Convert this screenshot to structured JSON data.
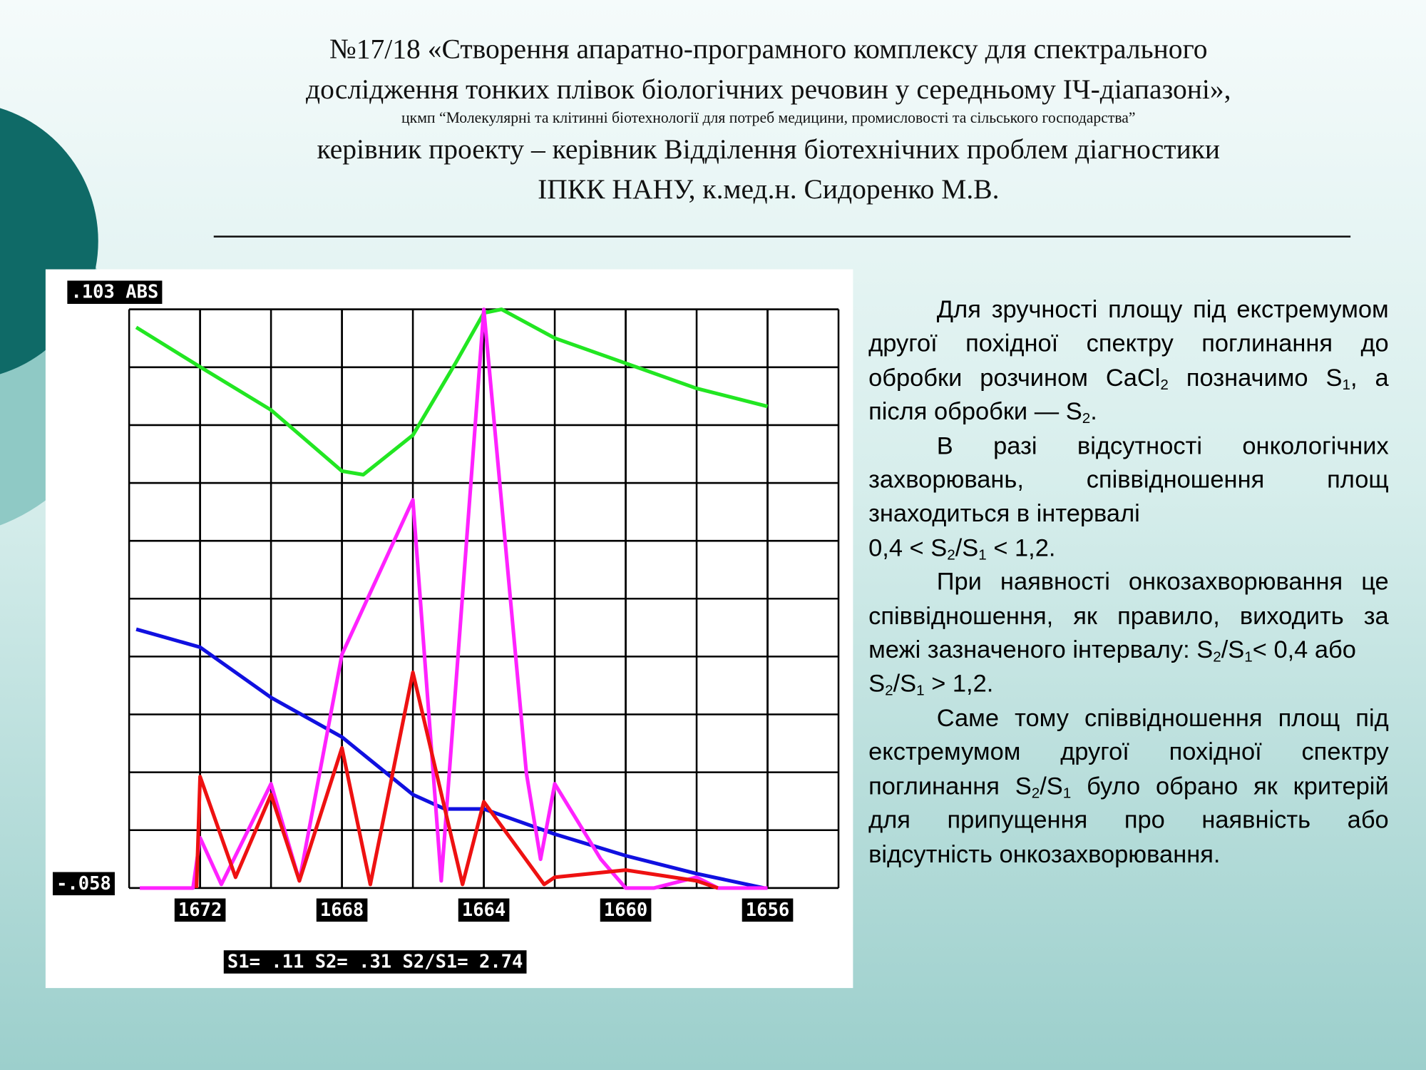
{
  "header": {
    "lines": [
      "№17/18 «Створення апаратно-програмного комплексу для спектрального",
      "дослідження тонких плівок біологічних речовин у середньому ІЧ-діапазоні»,",
      "цкмп “Молекулярні та клітинні біотехнології для потреб медицини, промисловості та сільського господарства”",
      "керівник проекту – керівник Відділення біотехнічних проблем діагностики",
      "ІПКК НАНУ, к.мед.н. Сидоренко М.В."
    ]
  },
  "text": {
    "paragraphs": [
      [
        "Для зручності площу під екстремумом другої похідної спектру поглинання до обробки розчином CaCl",
        "2",
        " позначимо S",
        "1",
        ", а після обробки — S",
        "2",
        "."
      ],
      [
        "В разі відсутності онкологічних захворювань, співвідношення площ знаходиться в інтервалі"
      ],
      [
        "0,4 < S",
        "2",
        "/S",
        "1",
        " < 1,2."
      ],
      [
        "При наявності онкозахворювання це співвідношення, як правило, виходить за межі зазначеного інтервалу: S",
        "2",
        "/S",
        "1",
        "< 0,4 або"
      ],
      [
        "S",
        "2",
        "/S",
        "1",
        " > 1,2."
      ],
      [
        "Саме тому співвідношення площ під екстремумом другої похідної спектру поглинання S",
        "2",
        "/S",
        "1",
        " було обрано як критерій для припущення про наявність або відсутність онкозахворювання."
      ]
    ]
  },
  "chart_data": {
    "type": "line",
    "xlim": [
      1674,
      1654
    ],
    "ylim": [
      -0.058,
      0.103
    ],
    "xticks": [
      1672,
      1668,
      1664,
      1660,
      1656
    ],
    "yticks": [
      {
        "value": 0.103,
        "label": ".103  ABS"
      },
      {
        "value": -0.058,
        "label": "-.058"
      }
    ],
    "grid": true,
    "annotation": "S1= .11    S2= .31     S2/S1= 2.74",
    "series": [
      {
        "color": "#22e622",
        "x": [
          1673.8,
          1672,
          1670,
          1668,
          1667.4,
          1666,
          1664.8,
          1664,
          1663.5,
          1662,
          1660,
          1658,
          1656
        ],
        "values": [
          0.098,
          0.087,
          0.075,
          0.058,
          0.057,
          0.068,
          0.088,
          0.102,
          0.103,
          0.095,
          0.088,
          0.081,
          0.076
        ]
      },
      {
        "color": "#1010e0",
        "x": [
          1673.8,
          1672,
          1670,
          1668,
          1666,
          1665.1,
          1664,
          1662,
          1660,
          1658,
          1656.1
        ],
        "values": [
          0.014,
          0.009,
          -0.005,
          -0.016,
          -0.032,
          -0.036,
          -0.036,
          -0.043,
          -0.049,
          -0.054,
          -0.058
        ]
      },
      {
        "color": "#ff22ff",
        "x": [
          1673.7,
          1672.2,
          1672,
          1671.4,
          1670,
          1669.2,
          1668,
          1666,
          1665.2,
          1664,
          1662.8,
          1662.4,
          1662,
          1660.7,
          1660,
          1659.2,
          1658,
          1657.4,
          1656
        ],
        "values": [
          -0.058,
          -0.058,
          -0.044,
          -0.057,
          -0.029,
          -0.056,
          0.007,
          0.05,
          -0.056,
          0.103,
          -0.026,
          -0.05,
          -0.029,
          -0.05,
          -0.058,
          -0.058,
          -0.055,
          -0.058,
          -0.058
        ]
      },
      {
        "color": "#ee1111",
        "x": [
          1672.1,
          1672,
          1671,
          1670,
          1669.2,
          1668,
          1667.2,
          1666,
          1664.6,
          1664,
          1662.3,
          1662,
          1660,
          1658,
          1657.4
        ],
        "values": [
          -0.058,
          -0.027,
          -0.055,
          -0.032,
          -0.056,
          -0.019,
          -0.057,
          0.002,
          -0.057,
          -0.034,
          -0.057,
          -0.055,
          -0.053,
          -0.056,
          -0.058
        ]
      }
    ]
  }
}
